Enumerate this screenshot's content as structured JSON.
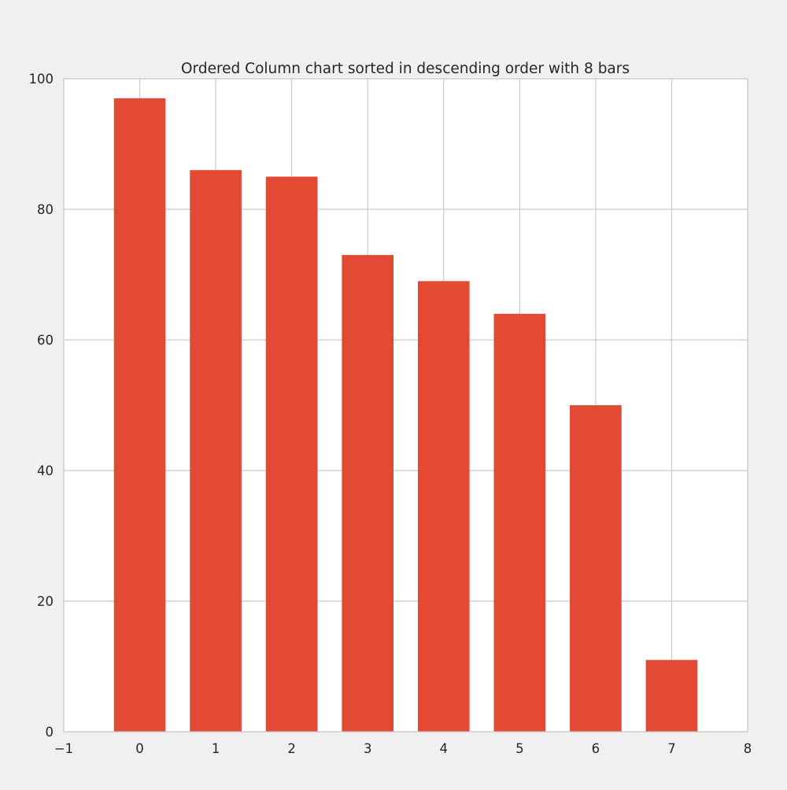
{
  "chart_data": {
    "type": "bar",
    "title": "Ordered Column chart sorted in descending order with 8 bars",
    "xlabel": "",
    "ylabel": "",
    "x": [
      0,
      1,
      2,
      3,
      4,
      5,
      6,
      7
    ],
    "values": [
      97,
      86,
      85,
      73,
      69,
      64,
      50,
      11
    ],
    "bar_width": 0.68,
    "xlim": [
      -1,
      8
    ],
    "ylim": [
      0,
      100
    ],
    "x_ticks": [
      -1,
      0,
      1,
      2,
      3,
      4,
      5,
      6,
      7,
      8
    ],
    "x_tick_labels": [
      "−1",
      "0",
      "1",
      "2",
      "3",
      "4",
      "5",
      "6",
      "7",
      "8"
    ],
    "y_ticks": [
      0,
      20,
      40,
      60,
      80,
      100
    ],
    "y_tick_labels": [
      "0",
      "20",
      "40",
      "60",
      "80",
      "100"
    ],
    "grid": true,
    "legend": "none",
    "colors": {
      "bar": "#e24a33",
      "grid": "#cbcbcb",
      "axes_face": "#ffffff",
      "figure_face": "#f0f0f0",
      "spine": "#cbcbcb"
    }
  }
}
